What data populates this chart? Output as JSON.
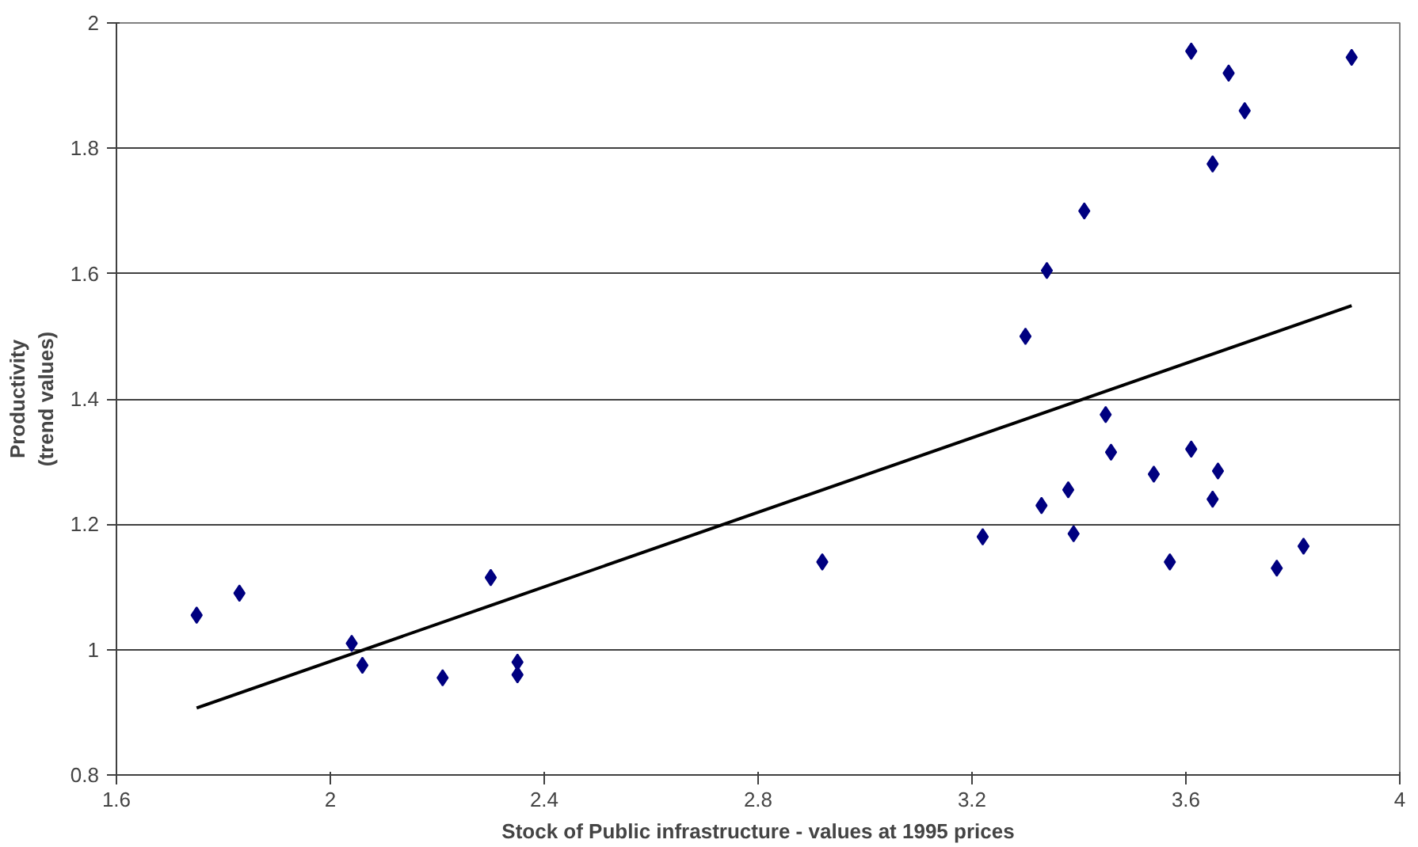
{
  "chart_data": {
    "type": "scatter",
    "xlabel": "Stock of Public infrastructure - values at 1995 prices",
    "ylabel": "Productivity\n(trend values)",
    "xlim": [
      1.6,
      4
    ],
    "xticks": [
      1.6,
      2,
      2.4,
      2.8,
      3.2,
      3.6,
      4
    ],
    "ylim": [
      0.8,
      2
    ],
    "yticks": [
      0.8,
      1,
      1.2,
      1.4,
      1.6,
      1.8,
      2
    ],
    "grid": "y",
    "marker": "diamond",
    "series": [
      {
        "color": "#000080",
        "x": [
          1.75,
          1.83,
          2.04,
          2.06,
          2.21,
          2.3,
          2.35,
          2.35,
          2.92,
          3.22,
          3.3,
          3.33,
          3.34,
          3.38,
          3.39,
          3.41,
          3.45,
          3.46,
          3.54,
          3.57,
          3.61,
          3.61,
          3.65,
          3.65,
          3.66,
          3.68,
          3.71,
          3.77,
          3.82,
          3.91
        ],
        "values": [
          1.055,
          1.09,
          1.01,
          0.975,
          0.955,
          1.115,
          0.98,
          0.96,
          1.14,
          1.18,
          1.5,
          1.23,
          1.605,
          1.255,
          1.185,
          1.7,
          1.375,
          1.315,
          1.28,
          1.14,
          1.955,
          1.32,
          1.24,
          1.775,
          1.285,
          1.92,
          1.86,
          1.13,
          1.165,
          1.945
        ]
      },
      {
        "type": "line",
        "color": "#000000",
        "marker": "none",
        "line_style": "solid",
        "x": [
          1.75,
          3.91
        ],
        "values": [
          0.907,
          1.549
        ]
      }
    ]
  }
}
